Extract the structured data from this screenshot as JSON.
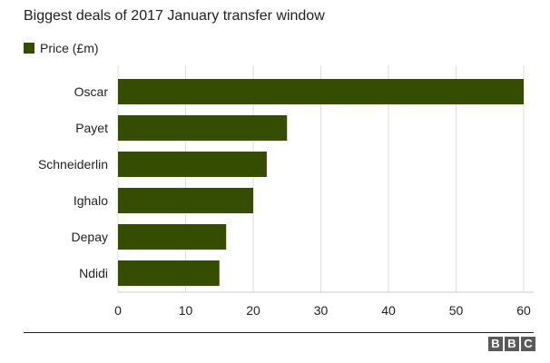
{
  "chart_data": {
    "type": "bar",
    "orientation": "horizontal",
    "title": "Biggest deals of 2017 January transfer window",
    "categories": [
      "Oscar",
      "Payet",
      "Schneiderlin",
      "Ighalo",
      "Depay",
      "Ndidi"
    ],
    "series": [
      {
        "name": "Price (£m)",
        "values": [
          60,
          25,
          22,
          20,
          16,
          15
        ]
      }
    ],
    "xlim": [
      0,
      60
    ],
    "xticks": [
      0,
      10,
      20,
      30,
      40,
      50,
      60
    ],
    "grid": true,
    "legend_position": "top-left",
    "colors": {
      "bar": "#344d00",
      "grid": "#dddddd",
      "text": "#222222",
      "logo": "#5a5a5a"
    }
  },
  "footer": {
    "logo_letters": [
      "B",
      "B",
      "C"
    ]
  }
}
